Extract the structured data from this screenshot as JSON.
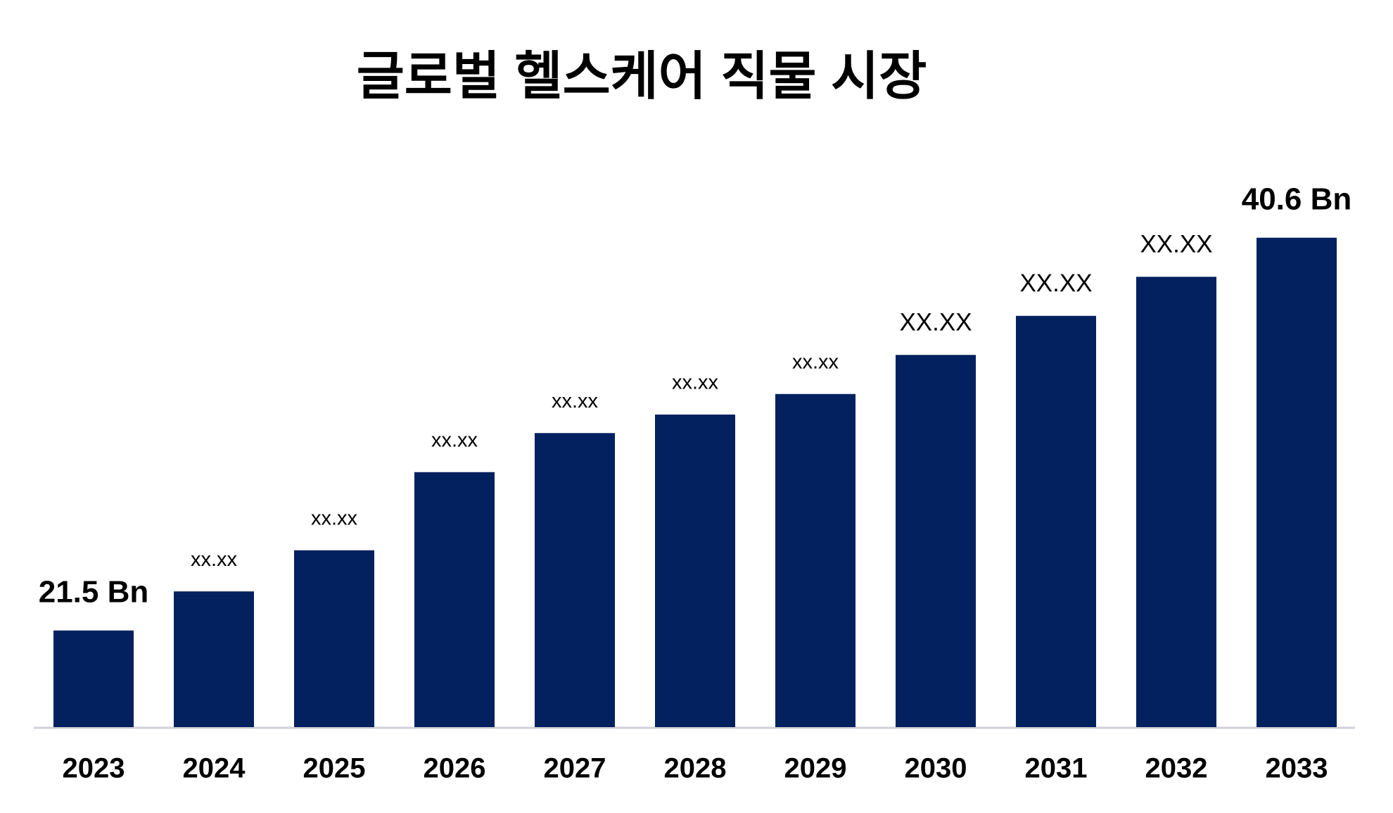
{
  "chart_data": {
    "type": "bar",
    "title": "글로벌 헬스케어 직물 시장",
    "categories": [
      "2023",
      "2024",
      "2025",
      "2026",
      "2027",
      "2028",
      "2029",
      "2030",
      "2031",
      "2032",
      "2033"
    ],
    "values": [
      21.5,
      23.4,
      25.4,
      29.2,
      31.1,
      32.0,
      33.0,
      34.9,
      36.8,
      38.7,
      40.6
    ],
    "value_labels": [
      "21.5 Bn",
      "xx.xx",
      "xx.xx",
      "xx.xx",
      "xx.xx",
      "xx.xx",
      "xx.xx",
      "XX.XX",
      "XX.XX",
      "XX.XX",
      "40.6 Bn"
    ],
    "color": "#03215e",
    "ylim": [
      16.8,
      43.5
    ]
  }
}
